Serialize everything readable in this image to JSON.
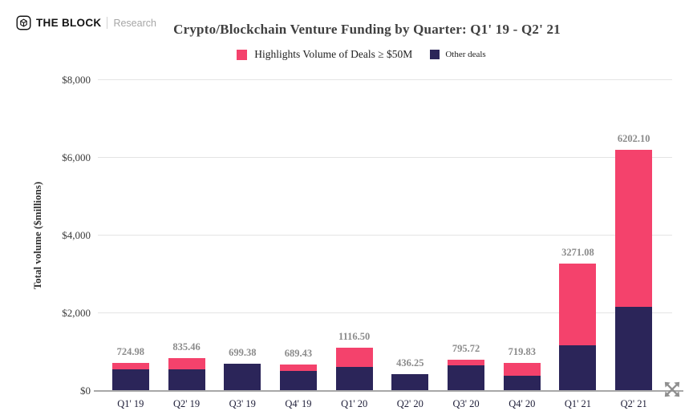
{
  "header": {
    "brand": "THE BLOCK",
    "brand_sub": "Research"
  },
  "icons": {
    "logo": "block-cube-outline",
    "expand": "diagonal-expand-arrows"
  },
  "colors": {
    "highlight_pink": "#F4426C",
    "other_navy": "#2B2559",
    "grid": "#E4E4E4",
    "axis_line": "#A8A8A8",
    "value_label": "#8B8B8B",
    "text": "#333333"
  },
  "chart_data": {
    "type": "bar",
    "stacked": true,
    "title": "Crypto/Blockchain Venture Funding by Quarter: Q1' 19 - Q2' 21",
    "xlabel": "",
    "ylabel": "Total volume ($millions)",
    "ylim": [
      0,
      8000
    ],
    "grid": true,
    "legend_position": "top",
    "yticks": [
      {
        "label": "$0",
        "value": 0
      },
      {
        "label": "$2,000",
        "value": 2000
      },
      {
        "label": "$4,000",
        "value": 4000
      },
      {
        "label": "$6,000",
        "value": 6000
      },
      {
        "label": "$8,000",
        "value": 8000
      }
    ],
    "categories": [
      "Q1' 19",
      "Q2' 19",
      "Q3' 19",
      "Q4' 19",
      "Q1' 20",
      "Q2' 20",
      "Q3' 20",
      "Q4' 20",
      "Q1' 21",
      "Q2' 21"
    ],
    "totals": [
      724.98,
      835.46,
      699.38,
      689.43,
      1116.5,
      436.25,
      795.72,
      719.83,
      3271.08,
      6202.1
    ],
    "totals_display": [
      "724.98",
      "835.46",
      "699.38",
      "689.43",
      "1116.50",
      "436.25",
      "795.72",
      "719.83",
      "3271.08",
      "6202.10"
    ],
    "series": [
      {
        "key": "large-deals",
        "name": "Highlights Volume of Deals ≥ $50M",
        "color": "#F4426C",
        "values": [
          165,
          270,
          0,
          170,
          505,
          0,
          145,
          325,
          2095,
          4045
        ]
      },
      {
        "key": "other-deals",
        "name": "Other deals",
        "color": "#2B2559",
        "values": [
          559.98,
          565.46,
          699.38,
          519.43,
          611.5,
          436.25,
          650.72,
          394.83,
          1176.08,
          2157.1
        ]
      }
    ]
  }
}
